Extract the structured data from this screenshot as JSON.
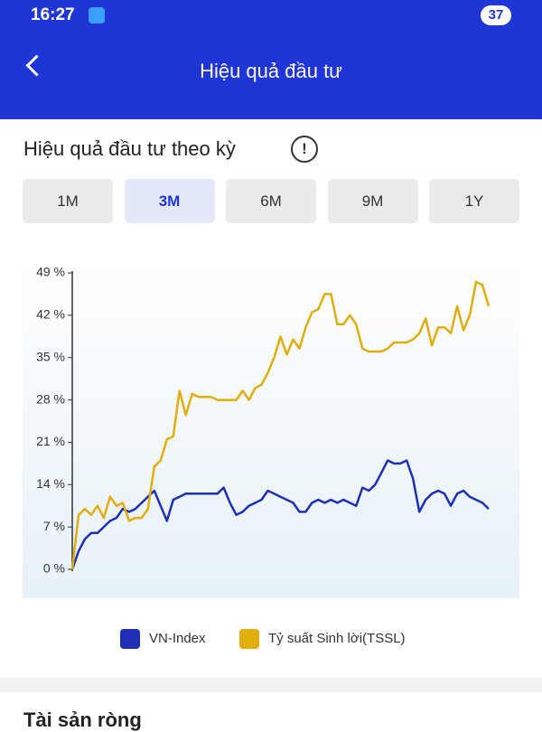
{
  "status_bar": {
    "time": "16:27",
    "battery": "37"
  },
  "header": {
    "title": "Hiệu quả đầu tư"
  },
  "section": {
    "title": "Hiệu quả đầu tư theo kỳ",
    "tabs": [
      "1M",
      "3M",
      "6M",
      "9M",
      "1Y"
    ]
  },
  "chart_data": {
    "type": "line",
    "ylim": [
      0,
      49
    ],
    "yticks": [
      {
        "value": 0,
        "label": "0 %"
      },
      {
        "value": 7,
        "label": "7 %"
      },
      {
        "value": 14,
        "label": "14 %"
      },
      {
        "value": 21,
        "label": "21 %"
      },
      {
        "value": 28,
        "label": "28 %"
      },
      {
        "value": 35,
        "label": "35 %"
      },
      {
        "value": 42,
        "label": "42 %"
      },
      {
        "value": 49,
        "label": "49 %"
      }
    ],
    "series": [
      {
        "name": "VN-Index",
        "color": "#1f2fb5",
        "values": [
          0,
          3,
          5,
          6,
          6,
          7,
          8,
          8.5,
          10,
          9.5,
          10,
          11,
          12,
          13,
          10.5,
          8,
          11.5,
          12,
          12.5,
          12.5,
          12.5,
          12.5,
          12.5,
          12.5,
          13.5,
          11,
          9,
          9.5,
          10.5,
          11,
          11.5,
          13,
          12.5,
          12,
          11.5,
          11,
          9.5,
          9.5,
          11,
          11.5,
          11,
          11.5,
          11,
          11.5,
          11,
          10.5,
          13.5,
          13,
          14,
          16,
          18,
          17.5,
          17.5,
          18,
          15,
          9.5,
          11.5,
          12.5,
          13,
          12.5,
          10.5,
          12.5,
          13,
          12,
          11.5,
          11,
          10
        ]
      },
      {
        "name": "Tỷ suất Sinh lời(TSSL)",
        "color": "#e0ae0c",
        "values": [
          0,
          9,
          10,
          9,
          10.5,
          8.5,
          12,
          10.5,
          11,
          8,
          8.5,
          8.5,
          10,
          17,
          18,
          21.5,
          22,
          29.5,
          25.5,
          29,
          28.5,
          28.5,
          28.5,
          28,
          28,
          28,
          28,
          29.5,
          28,
          30,
          30.5,
          32.5,
          35,
          38.5,
          35.5,
          38,
          36.5,
          40,
          42.5,
          43,
          45.5,
          45.5,
          40.5,
          40.5,
          42,
          40.5,
          36.5,
          36,
          36,
          36,
          36.5,
          37.5,
          37.5,
          37.5,
          38,
          39,
          41.5,
          37,
          40,
          40,
          39,
          43.5,
          39.5,
          42,
          47.5,
          47,
          43.5
        ]
      }
    ]
  },
  "bottom": {
    "title": "Tài sản ròng"
  }
}
